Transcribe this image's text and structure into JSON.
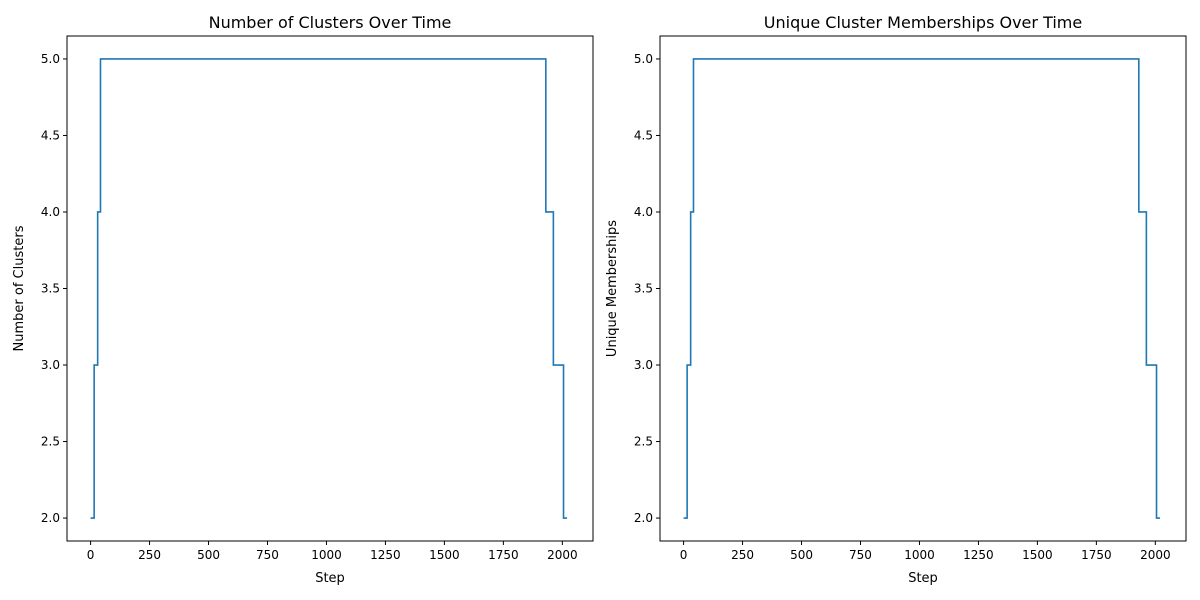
{
  "chart_data": [
    {
      "type": "line",
      "step": true,
      "title": "Number of Clusters Over Time",
      "xlabel": "Step",
      "ylabel": "Number of Clusters",
      "xlim": [
        -100,
        2130
      ],
      "ylim": [
        1.85,
        5.15
      ],
      "xticks": [
        0,
        250,
        500,
        750,
        1000,
        1250,
        1500,
        1750,
        2000
      ],
      "yticks": [
        2.0,
        2.5,
        3.0,
        3.5,
        4.0,
        4.5,
        5.0
      ],
      "xtick_labels": [
        "0",
        "250",
        "500",
        "750",
        "1000",
        "1250",
        "1500",
        "1750",
        "2000"
      ],
      "ytick_labels": [
        "2.0",
        "2.5",
        "3.0",
        "3.5",
        "4.0",
        "4.5",
        "5.0"
      ],
      "grid": false,
      "color": "#1f77b4",
      "series": [
        {
          "x": [
            0,
            15,
            15,
            30,
            30,
            42,
            42,
            1930,
            1930,
            1962,
            1962,
            2005,
            2005,
            2020
          ],
          "y": [
            2,
            2,
            3,
            3,
            4,
            4,
            5,
            5,
            4,
            4,
            3,
            3,
            2,
            2
          ]
        }
      ]
    },
    {
      "type": "line",
      "step": true,
      "title": "Unique Cluster Memberships Over Time",
      "xlabel": "Step",
      "ylabel": "Unique Memberships",
      "xlim": [
        -100,
        2130
      ],
      "ylim": [
        1.85,
        5.15
      ],
      "xticks": [
        0,
        250,
        500,
        750,
        1000,
        1250,
        1500,
        1750,
        2000
      ],
      "yticks": [
        2.0,
        2.5,
        3.0,
        3.5,
        4.0,
        4.5,
        5.0
      ],
      "xtick_labels": [
        "0",
        "250",
        "500",
        "750",
        "1000",
        "1250",
        "1500",
        "1750",
        "2000"
      ],
      "ytick_labels": [
        "2.0",
        "2.5",
        "3.0",
        "3.5",
        "4.0",
        "4.5",
        "5.0"
      ],
      "grid": false,
      "color": "#1f77b4",
      "series": [
        {
          "x": [
            0,
            15,
            15,
            30,
            30,
            42,
            42,
            1930,
            1930,
            1962,
            1962,
            2005,
            2005,
            2020
          ],
          "y": [
            2,
            2,
            3,
            3,
            4,
            4,
            5,
            5,
            4,
            4,
            3,
            3,
            2,
            2
          ]
        }
      ]
    }
  ]
}
